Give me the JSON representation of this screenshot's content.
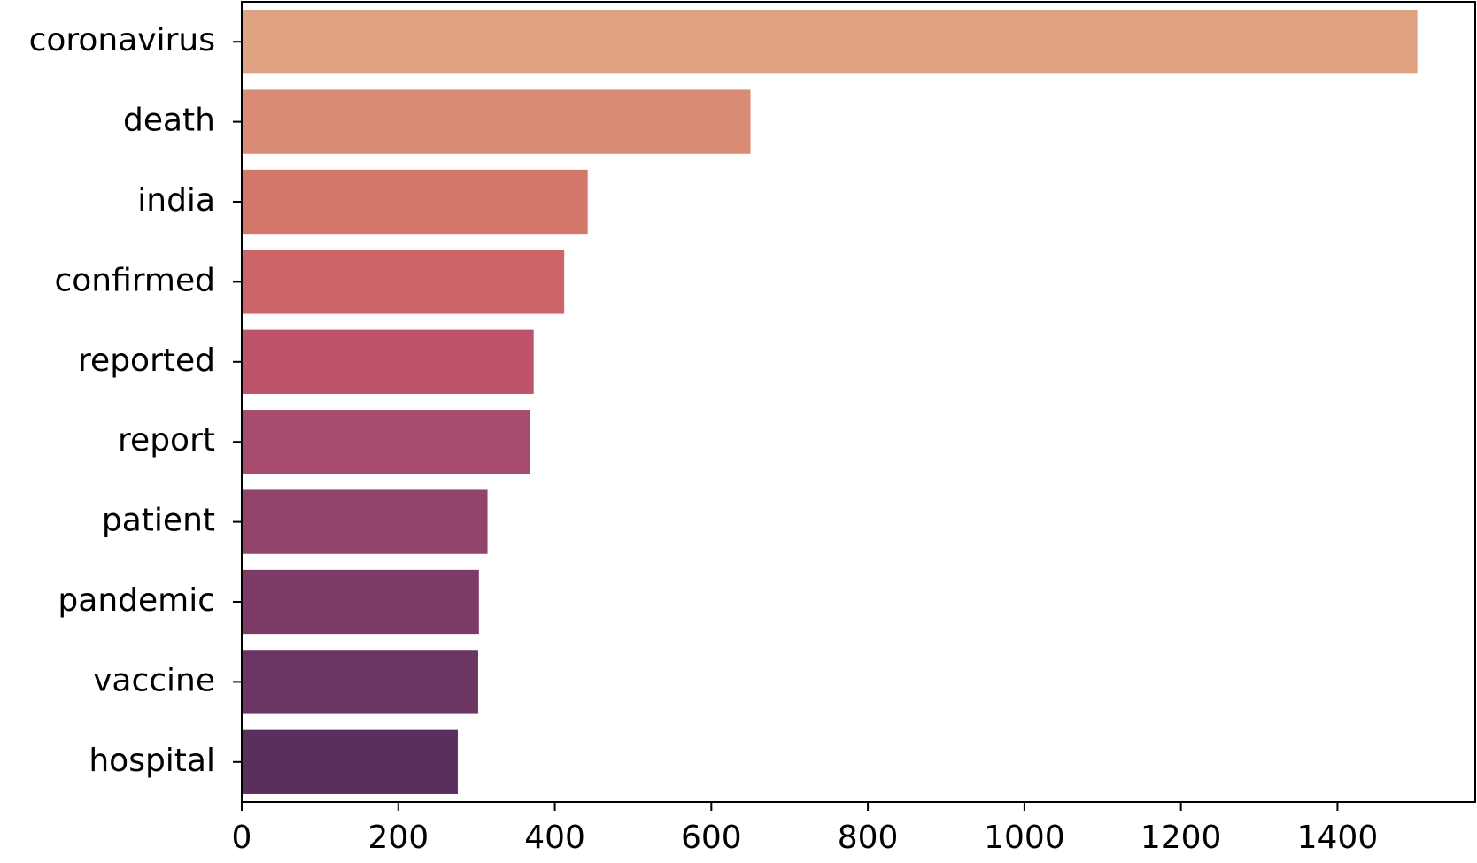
{
  "chart_data": {
    "type": "barh",
    "categories": [
      "coronavirus",
      "death",
      "india",
      "confirmed",
      "reported",
      "report",
      "patient",
      "pandemic",
      "vaccine",
      "hospital"
    ],
    "values": [
      1502,
      650,
      442,
      412,
      373,
      368,
      314,
      303,
      302,
      276
    ],
    "colors": [
      "#dfa283",
      "#d98b73",
      "#d4776b",
      "#cb6569",
      "#bd546a",
      "#a74c6e",
      "#92456b",
      "#7d3c68",
      "#6a3463",
      "#5a2f5e"
    ],
    "xlim": [
      0,
      1576
    ],
    "xticks": [
      0,
      200,
      400,
      600,
      800,
      1000,
      1200,
      1400
    ]
  }
}
